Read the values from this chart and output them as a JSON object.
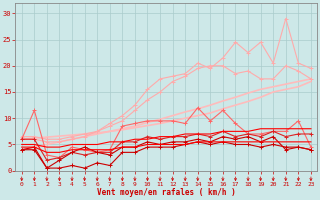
{
  "title": "",
  "xlabel": "Vent moyen/en rafales ( km/h )",
  "bg_color": "#cde8e8",
  "grid_color": "#aacccc",
  "x": [
    0,
    1,
    2,
    3,
    4,
    5,
    6,
    7,
    8,
    9,
    10,
    11,
    12,
    13,
    14,
    15,
    16,
    17,
    18,
    19,
    20,
    21,
    22,
    23
  ],
  "lines": [
    {
      "y": [
        6.0,
        6.2,
        6.4,
        6.6,
        6.8,
        7.0,
        7.2,
        7.5,
        7.8,
        8.2,
        8.6,
        9.0,
        9.5,
        10.0,
        10.5,
        11.0,
        11.8,
        12.5,
        13.2,
        14.0,
        15.0,
        15.5,
        16.0,
        17.0
      ],
      "color": "#ffbbbb",
      "lw": 1.2,
      "marker": null
    },
    {
      "y": [
        4.0,
        4.5,
        5.0,
        5.5,
        6.0,
        6.5,
        7.0,
        7.5,
        8.0,
        8.5,
        9.2,
        9.8,
        10.5,
        11.2,
        11.8,
        12.5,
        13.3,
        14.0,
        14.8,
        15.5,
        16.0,
        16.5,
        17.0,
        17.5
      ],
      "color": "#ffbbbb",
      "lw": 1.2,
      "marker": null
    },
    {
      "y": [
        6.5,
        6.5,
        6.0,
        6.0,
        6.5,
        7.0,
        7.5,
        9.0,
        10.5,
        12.5,
        15.5,
        17.5,
        18.0,
        18.5,
        20.5,
        19.5,
        21.5,
        24.5,
        22.5,
        24.5,
        20.5,
        29.0,
        20.5,
        19.5
      ],
      "color": "#ffaaaa",
      "lw": 0.8,
      "marker": "+",
      "ms": 3
    },
    {
      "y": [
        6.0,
        6.0,
        5.5,
        5.5,
        6.0,
        6.5,
        7.5,
        8.5,
        9.5,
        11.5,
        13.5,
        15.0,
        17.0,
        18.0,
        19.5,
        20.0,
        20.0,
        18.5,
        19.0,
        17.5,
        17.5,
        20.0,
        19.0,
        17.5
      ],
      "color": "#ffaaaa",
      "lw": 0.8,
      "marker": "+",
      "ms": 3
    },
    {
      "y": [
        6.0,
        11.5,
        3.0,
        2.5,
        4.5,
        4.0,
        3.5,
        4.0,
        8.5,
        9.0,
        9.5,
        9.5,
        9.5,
        9.0,
        12.0,
        9.5,
        11.5,
        9.0,
        7.0,
        7.0,
        7.5,
        7.5,
        9.5,
        4.5
      ],
      "color": "#ff6666",
      "lw": 0.8,
      "marker": "+",
      "ms": 3
    },
    {
      "y": [
        6.0,
        6.0,
        2.0,
        2.5,
        3.5,
        3.0,
        3.5,
        3.5,
        5.5,
        5.5,
        6.5,
        6.0,
        6.5,
        6.5,
        7.0,
        6.5,
        7.5,
        6.5,
        7.0,
        6.5,
        7.5,
        6.5,
        7.0,
        7.0
      ],
      "color": "#dd2222",
      "lw": 0.8,
      "marker": "+",
      "ms": 3
    },
    {
      "y": [
        4.0,
        4.5,
        0.5,
        0.5,
        1.0,
        0.5,
        1.5,
        1.0,
        3.5,
        3.5,
        4.5,
        4.5,
        4.5,
        5.0,
        5.5,
        5.0,
        5.5,
        5.0,
        5.0,
        4.5,
        5.0,
        4.5,
        4.5,
        4.0
      ],
      "color": "#cc0000",
      "lw": 0.8,
      "marker": "+",
      "ms": 3
    },
    {
      "y": [
        4.0,
        4.0,
        0.5,
        2.0,
        3.5,
        4.5,
        3.5,
        3.0,
        4.5,
        4.5,
        5.5,
        5.0,
        5.5,
        5.5,
        6.0,
        5.5,
        6.5,
        6.0,
        6.5,
        5.5,
        6.5,
        4.0,
        4.5,
        4.0
      ],
      "color": "#cc0000",
      "lw": 0.8,
      "marker": "+",
      "ms": 3
    },
    {
      "y": [
        4.5,
        4.5,
        3.5,
        3.5,
        4.0,
        4.0,
        4.0,
        4.0,
        4.5,
        4.5,
        5.0,
        5.0,
        5.0,
        5.0,
        5.5,
        5.5,
        5.5,
        5.5,
        5.5,
        5.5,
        5.5,
        5.5,
        5.5,
        5.5
      ],
      "color": "#ff0000",
      "lw": 0.8,
      "marker": null
    },
    {
      "y": [
        5.0,
        5.0,
        4.5,
        4.5,
        5.0,
        5.0,
        5.0,
        5.5,
        5.5,
        6.0,
        6.0,
        6.5,
        6.5,
        7.0,
        7.0,
        7.0,
        7.5,
        7.5,
        7.5,
        8.0,
        8.0,
        8.0,
        8.0,
        8.0
      ],
      "color": "#ff0000",
      "lw": 0.8,
      "marker": null
    }
  ],
  "ylim": [
    0,
    32
  ],
  "yticks": [
    0,
    5,
    10,
    15,
    20,
    25,
    30
  ],
  "xticks": [
    0,
    1,
    2,
    3,
    4,
    5,
    6,
    7,
    8,
    9,
    10,
    11,
    12,
    13,
    14,
    15,
    16,
    17,
    18,
    19,
    20,
    21,
    22,
    23
  ],
  "label_color": "#cc0000",
  "tick_color": "#cc0000",
  "arrow_color": "#cc0000",
  "spine_color": "#888888"
}
